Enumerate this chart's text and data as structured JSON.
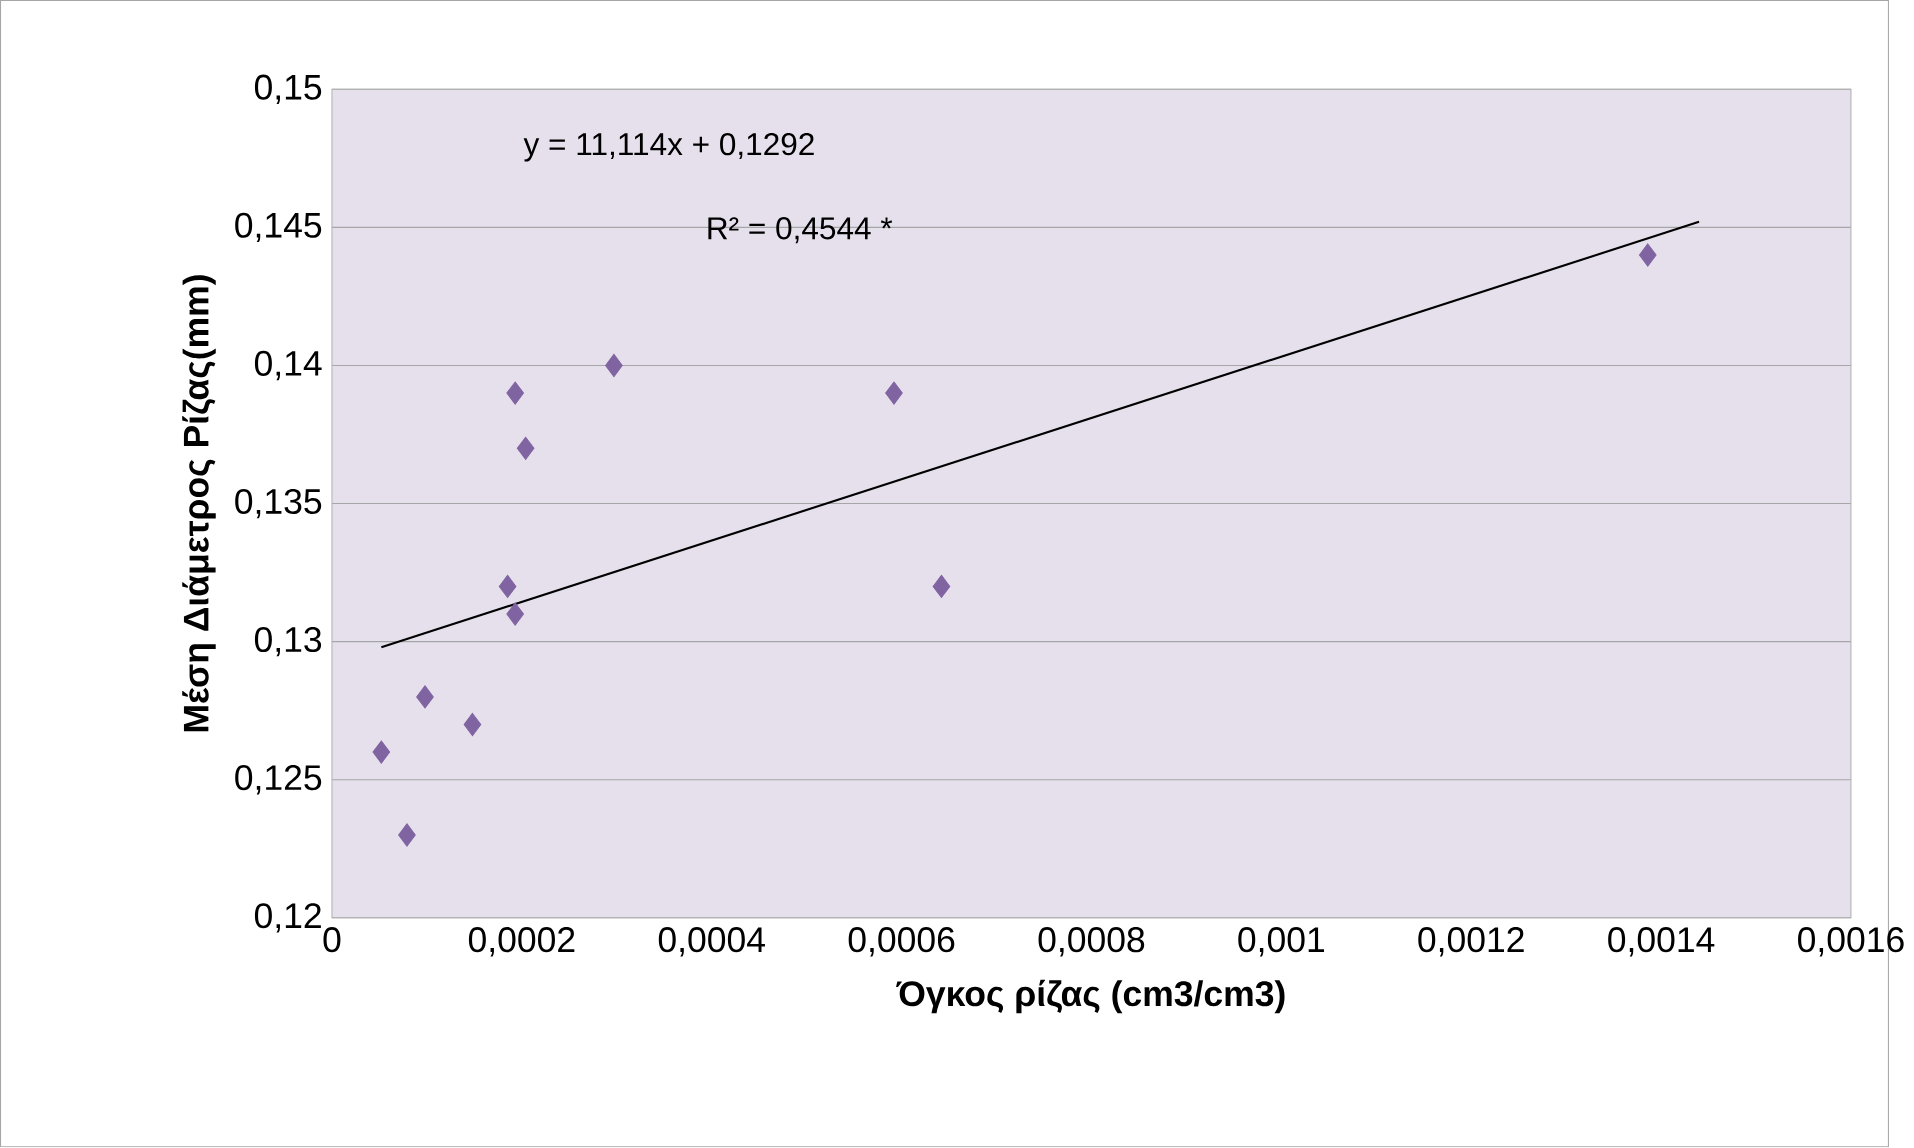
{
  "chart_data": {
    "type": "scatter",
    "xlabel": "Όγκος ρίζας (cm3/cm3)",
    "ylabel": "Μέση Διάμετρος Ρίζας(mm)",
    "xlim": [
      0,
      0.0016
    ],
    "ylim": [
      0.12,
      0.15
    ],
    "xticks": [
      0,
      {
        "value": 0.0002,
        "label": "0,0002"
      },
      {
        "value": 0.0004,
        "label": "0,0004"
      },
      {
        "value": 0.0006,
        "label": "0,0006"
      },
      {
        "value": 0.0008,
        "label": "0,0008"
      },
      {
        "value": 0.001,
        "label": "0,001"
      },
      {
        "value": 0.0012,
        "label": "0,0012"
      },
      {
        "value": 0.0014,
        "label": "0,0014"
      },
      {
        "value": 0.0016,
        "label": "0,0016"
      }
    ],
    "yticks": [
      {
        "value": 0.12,
        "label": "0,12"
      },
      {
        "value": 0.125,
        "label": "0,125"
      },
      {
        "value": 0.13,
        "label": "0,13"
      },
      {
        "value": 0.135,
        "label": "0,135"
      },
      {
        "value": 0.14,
        "label": "0,14"
      },
      {
        "value": 0.145,
        "label": "0,145"
      },
      {
        "value": 0.15,
        "label": "0,15"
      }
    ],
    "grid": "y",
    "series": [
      {
        "color": "#8064a2",
        "marker": "diamond",
        "x": [
          5.2e-05,
          7.9e-05,
          9.8e-05,
          0.000148,
          0.000185,
          0.000193,
          0.000193,
          0.000204,
          0.000297,
          0.000592,
          0.000642,
          0.001386
        ],
        "values": [
          0.126,
          0.123,
          0.128,
          0.127,
          0.132,
          0.131,
          0.139,
          0.137,
          0.14,
          0.139,
          0.132,
          0.144
        ]
      },
      {
        "type": "line",
        "color": "#000000",
        "marker": "none",
        "line_style": "solid",
        "x": [
          5.2e-05,
          0.00144
        ],
        "values": [
          0.1298,
          0.1452
        ]
      }
    ],
    "annotations": [
      "y = 11,114x + 0,1292",
      "R² = 0,4544 *"
    ]
  }
}
